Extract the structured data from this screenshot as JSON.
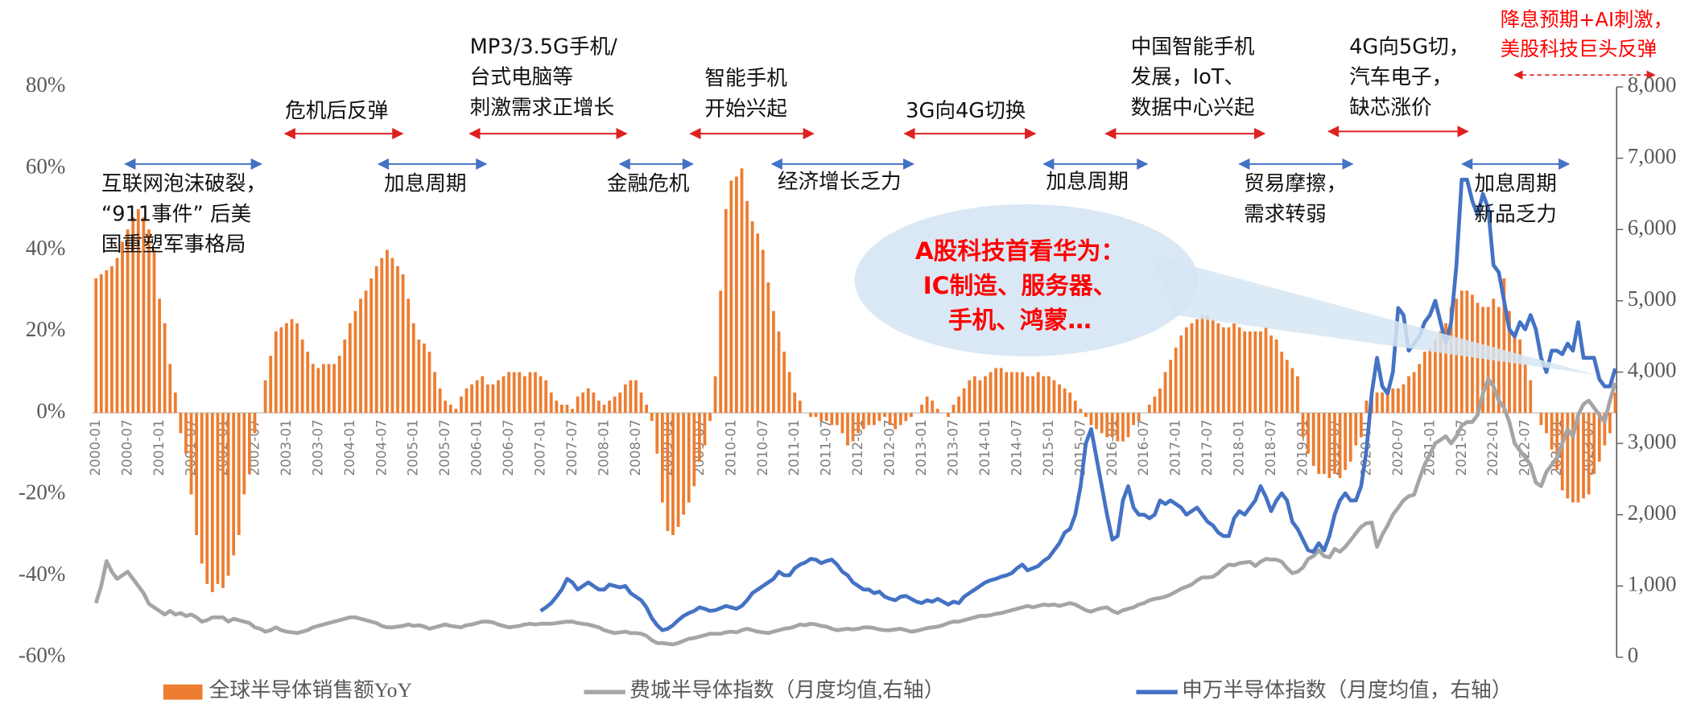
{
  "chart_data": {
    "type": "bar",
    "categories": [
      "2000-01",
      null,
      null,
      null,
      null,
      null,
      "2000-07",
      null,
      null,
      null,
      null,
      null,
      "2001-01",
      null,
      null,
      null,
      null,
      null,
      "2001-07",
      null,
      null,
      null,
      null,
      null,
      "2002-01",
      null,
      null,
      null,
      null,
      null,
      "2002-07",
      null,
      null,
      null,
      null,
      null,
      "2003-01",
      null,
      null,
      null,
      null,
      null,
      "2003-07",
      null,
      null,
      null,
      null,
      null,
      "2004-01",
      null,
      null,
      null,
      null,
      null,
      "2004-07",
      null,
      null,
      null,
      null,
      null,
      "2005-01",
      null,
      null,
      null,
      null,
      null,
      "2005-07",
      null,
      null,
      null,
      null,
      null,
      "2006-01",
      null,
      null,
      null,
      null,
      null,
      "2006-07",
      null,
      null,
      null,
      null,
      null,
      "2007-01",
      null,
      null,
      null,
      null,
      null,
      "2007-07",
      null,
      null,
      null,
      null,
      null,
      "2008-01",
      null,
      null,
      null,
      null,
      null,
      "2008-07",
      null,
      null,
      null,
      null,
      null,
      "2009-01",
      null,
      null,
      null,
      null,
      null,
      "2009-07",
      null,
      null,
      null,
      null,
      null,
      "2010-01",
      null,
      null,
      null,
      null,
      null,
      "2010-07",
      null,
      null,
      null,
      null,
      null,
      "2011-01",
      null,
      null,
      null,
      null,
      null,
      "2011-07",
      null,
      null,
      null,
      null,
      null,
      "2012-01",
      null,
      null,
      null,
      null,
      null,
      "2012-07",
      null,
      null,
      null,
      null,
      null,
      "2013-01",
      null,
      null,
      null,
      null,
      null,
      "2013-07",
      null,
      null,
      null,
      null,
      null,
      "2014-01",
      null,
      null,
      null,
      null,
      null,
      "2014-07",
      null,
      null,
      null,
      null,
      null,
      "2015-01",
      null,
      null,
      null,
      null,
      null,
      "2015-07",
      null,
      null,
      null,
      null,
      null,
      "2016-01",
      null,
      null,
      null,
      null,
      null,
      "2016-07",
      null,
      null,
      null,
      null,
      null,
      "2017-01",
      null,
      null,
      null,
      null,
      null,
      "2017-07",
      null,
      null,
      null,
      null,
      null,
      "2018-01",
      null,
      null,
      null,
      null,
      null,
      "2018-07",
      null,
      null,
      null,
      null,
      null,
      "2019-01",
      null,
      null,
      null,
      null,
      null,
      "2019-07",
      null,
      null,
      null,
      null,
      null,
      "2020-01",
      null,
      null,
      null,
      null,
      null,
      "2020-07",
      null,
      null,
      null,
      null,
      null,
      "2021-01",
      null,
      null,
      null,
      null,
      null,
      "2021-07",
      null,
      null,
      null,
      null,
      null,
      "2022-01",
      null,
      null,
      null,
      null,
      null,
      "2022-07",
      null,
      null,
      null,
      null,
      null,
      "2023-01",
      null,
      null,
      null,
      null,
      null,
      "2023-07",
      null,
      null,
      null,
      null,
      null
    ],
    "series": [
      {
        "name": "全球半导体销售额YoY",
        "type": "bar",
        "color": "#ed7d31",
        "axis": "y",
        "values": [
          33,
          34,
          35,
          36,
          38,
          42,
          45,
          48,
          50,
          48,
          45,
          40,
          28,
          22,
          12,
          5,
          -5,
          -10,
          -20,
          -30,
          -37,
          -42,
          -44,
          -42,
          -43,
          -40,
          -35,
          -30,
          -20,
          -15,
          -5,
          0,
          8,
          14,
          20,
          21,
          22,
          23,
          22,
          18,
          15,
          12,
          11,
          12,
          12,
          12,
          14,
          18,
          22,
          25,
          28,
          30,
          33,
          36,
          38,
          40,
          38,
          36,
          34,
          28,
          22,
          18,
          17,
          15,
          10,
          6,
          3,
          2,
          1,
          4,
          6,
          7,
          8,
          9,
          7,
          7,
          8,
          9,
          10,
          10,
          10,
          9,
          10,
          10,
          9,
          8,
          5,
          3,
          2,
          2,
          1,
          4,
          5,
          6,
          5,
          3,
          2,
          3,
          4,
          5,
          7,
          8,
          8,
          5,
          2,
          -2,
          -10,
          -22,
          -29,
          -30,
          -28,
          -25,
          -22,
          -18,
          -12,
          -8,
          -2,
          9,
          30,
          50,
          57,
          58,
          60,
          52,
          47,
          44,
          40,
          32,
          25,
          20,
          15,
          10,
          5,
          3,
          0,
          -1,
          -1,
          -2,
          -2,
          -3,
          -3,
          -5,
          -8,
          -7,
          -5,
          -4,
          -3,
          -3,
          -2,
          -1,
          -3,
          -4,
          -3,
          -2,
          -1,
          0,
          2,
          4,
          3,
          1,
          0,
          -1,
          2,
          4,
          6,
          8,
          9,
          8,
          9,
          10,
          11,
          11,
          10,
          10,
          10,
          10,
          9,
          9,
          10,
          9,
          9,
          8,
          7,
          6,
          5,
          3,
          1,
          -1,
          -3,
          -4,
          -5,
          -6,
          -6,
          -7,
          -7,
          -6,
          -3,
          -2,
          0,
          2,
          4,
          6,
          10,
          13,
          16,
          19,
          21,
          22,
          23,
          24,
          24,
          23,
          22,
          21,
          21,
          22,
          21,
          20,
          20,
          20,
          20,
          21,
          19,
          18,
          15,
          13,
          11,
          9,
          -6,
          -10,
          -13,
          -15,
          -15,
          -16,
          -15,
          -16,
          -14,
          -12,
          -8,
          -6,
          3,
          4,
          5,
          5,
          6,
          6,
          6,
          7,
          9,
          10,
          12,
          15,
          16,
          18,
          20,
          22,
          26,
          28,
          30,
          30,
          29,
          27,
          26,
          26,
          28,
          26,
          33,
          25,
          19,
          18,
          12,
          8,
          0,
          -3,
          -5,
          -9,
          -14,
          -19,
          -21,
          -22,
          -22,
          -21,
          -20,
          -15,
          -12,
          -8,
          -5,
          5
        ]
      },
      {
        "name": "费城半导体指数（月度均值,右轴）",
        "type": "line",
        "color": "#a5a5a5",
        "axis": "y2",
        "values": [
          760,
          1000,
          1350,
          1200,
          1100,
          1150,
          1200,
          1100,
          1000,
          900,
          750,
          700,
          650,
          600,
          650,
          600,
          620,
          580,
          600,
          560,
          500,
          520,
          560,
          560,
          560,
          500,
          540,
          520,
          500,
          480,
          420,
          400,
          360,
          380,
          420,
          380,
          360,
          350,
          340,
          360,
          380,
          420,
          440,
          460,
          480,
          500,
          520,
          540,
          560,
          560,
          540,
          520,
          500,
          480,
          440,
          420,
          420,
          430,
          440,
          460,
          440,
          450,
          430,
          400,
          420,
          440,
          460,
          440,
          430,
          420,
          450,
          460,
          480,
          500,
          500,
          490,
          460,
          440,
          420,
          430,
          440,
          460,
          470,
          460,
          470,
          470,
          470,
          480,
          490,
          500,
          500,
          480,
          470,
          460,
          440,
          420,
          380,
          360,
          340,
          350,
          360,
          340,
          340,
          330,
          300,
          240,
          200,
          200,
          190,
          180,
          200,
          230,
          260,
          270,
          290,
          310,
          330,
          330,
          330,
          350,
          360,
          350,
          380,
          400,
          380,
          360,
          350,
          340,
          360,
          380,
          400,
          410,
          430,
          460,
          450,
          470,
          460,
          440,
          430,
          400,
          380,
          390,
          400,
          390,
          400,
          420,
          420,
          410,
          390,
          380,
          380,
          390,
          400,
          380,
          360,
          370,
          390,
          410,
          420,
          430,
          450,
          480,
          500,
          500,
          520,
          540,
          560,
          580,
          580,
          590,
          610,
          620,
          640,
          660,
          680,
          700,
          720,
          700,
          720,
          740,
          730,
          740,
          720,
          740,
          760,
          740,
          700,
          660,
          640,
          670,
          690,
          700,
          650,
          620,
          660,
          680,
          700,
          740,
          760,
          800,
          820,
          830,
          850,
          880,
          920,
          960,
          990,
          1020,
          1080,
          1120,
          1120,
          1130,
          1180,
          1250,
          1300,
          1290,
          1320,
          1330,
          1340,
          1280,
          1340,
          1380,
          1370,
          1370,
          1340,
          1250,
          1180,
          1200,
          1260,
          1380,
          1420,
          1500,
          1420,
          1400,
          1520,
          1480,
          1550,
          1640,
          1740,
          1830,
          1880,
          1890,
          1550,
          1720,
          1850,
          2000,
          2100,
          2200,
          2260,
          2280,
          2500,
          2700,
          2850,
          3000,
          3050,
          3100,
          3000,
          3100,
          3250,
          3300,
          3300,
          3400,
          3700,
          3900,
          3800,
          3600,
          3500,
          3300,
          3000,
          2900,
          2800,
          2700,
          2450,
          2400,
          2600,
          2700,
          2800,
          3000,
          3200,
          3100,
          3400,
          3550,
          3600,
          3500,
          3400,
          3300,
          3600,
          3850
        ]
      },
      {
        "name": "申万半导体指数（月度均值，右轴）",
        "type": "line",
        "color": "#4472c4",
        "axis": "y2",
        "values": [
          null,
          null,
          null,
          null,
          null,
          null,
          null,
          null,
          null,
          null,
          null,
          null,
          null,
          null,
          null,
          null,
          null,
          null,
          null,
          null,
          null,
          null,
          null,
          null,
          null,
          null,
          null,
          null,
          null,
          null,
          null,
          null,
          null,
          null,
          null,
          null,
          null,
          null,
          null,
          null,
          null,
          null,
          null,
          null,
          null,
          null,
          null,
          null,
          null,
          null,
          null,
          null,
          null,
          null,
          null,
          null,
          null,
          null,
          null,
          null,
          null,
          null,
          null,
          null,
          null,
          null,
          null,
          null,
          null,
          null,
          null,
          null,
          null,
          null,
          null,
          null,
          null,
          null,
          null,
          null,
          null,
          null,
          null,
          null,
          650,
          700,
          760,
          850,
          950,
          1100,
          1050,
          950,
          1000,
          1050,
          1000,
          950,
          950,
          1020,
          1000,
          980,
          1000,
          900,
          850,
          800,
          700,
          550,
          450,
          380,
          400,
          450,
          520,
          580,
          620,
          650,
          700,
          680,
          650,
          660,
          690,
          720,
          700,
          680,
          720,
          800,
          900,
          950,
          1000,
          1050,
          1100,
          1200,
          1150,
          1150,
          1250,
          1300,
          1330,
          1380,
          1370,
          1320,
          1350,
          1370,
          1300,
          1200,
          1150,
          1050,
          1000,
          950,
          950,
          900,
          920,
          850,
          820,
          800,
          850,
          860,
          820,
          780,
          760,
          800,
          780,
          820,
          780,
          740,
          780,
          760,
          850,
          900,
          950,
          1000,
          1050,
          1080,
          1100,
          1130,
          1150,
          1180,
          1250,
          1300,
          1220,
          1250,
          1280,
          1350,
          1400,
          1500,
          1600,
          1750,
          1800,
          2000,
          2400,
          3000,
          3200,
          2800,
          2400,
          2000,
          1650,
          1700,
          2200,
          2400,
          2100,
          2000,
          2000,
          1950,
          2000,
          2200,
          2150,
          2200,
          2150,
          2100,
          2000,
          2050,
          2100,
          2000,
          1900,
          1850,
          1750,
          1700,
          1700,
          1950,
          2050,
          2000,
          2100,
          2200,
          2400,
          2250,
          2050,
          2200,
          2300,
          2200,
          1900,
          1800,
          1650,
          1500,
          1480,
          1600,
          1500,
          1700,
          2000,
          2200,
          2300,
          2200,
          2200,
          2400,
          2900,
          3700,
          4200,
          3800,
          3700,
          4000,
          4900,
          4800,
          4300,
          4400,
          4500,
          4700,
          4800,
          5000,
          4700,
          4400,
          4700,
          5500,
          6700,
          6700,
          6400,
          6200,
          6500,
          6300,
          5500,
          5400,
          5000,
          4600,
          4500,
          4700,
          4600,
          4800,
          4600,
          4200,
          4000,
          4300,
          4300,
          4250,
          4400,
          4300,
          4700,
          4200,
          4200,
          4200,
          3900,
          3800,
          3800,
          4050
        ]
      }
    ],
    "ylim": [
      -60,
      80
    ],
    "yticks": [
      {
        "value": -60,
        "label": "-60%"
      },
      {
        "value": -40,
        "label": "-40%"
      },
      {
        "value": -20,
        "label": "-20%"
      },
      {
        "value": 0,
        "label": "0%"
      },
      {
        "value": 20,
        "label": "20%"
      },
      {
        "value": 40,
        "label": "40%"
      },
      {
        "value": 60,
        "label": "60%"
      },
      {
        "value": 80,
        "label": "80%"
      }
    ],
    "y2lim": [
      0,
      8000
    ],
    "y2ticks": [
      0,
      {
        "value": 1000,
        "label": "1,000"
      },
      {
        "value": 2000,
        "label": "2,000"
      },
      {
        "value": 3000,
        "label": "3,000"
      },
      {
        "value": 4000,
        "label": "4,000"
      },
      {
        "value": 5000,
        "label": "5,000"
      },
      {
        "value": 6000,
        "label": "6,000"
      },
      {
        "value": 7000,
        "label": "7,000"
      },
      {
        "value": 8000,
        "label": "8,000"
      }
    ],
    "legend": "bottom",
    "annotations": [
      {
        "lines": [
          "互联网泡沫破裂，",
          "“911事件” 后美",
          "国重塑军事格局"
        ]
      },
      {
        "lines": [
          "危机后反弹"
        ]
      },
      {
        "lines": [
          "加息周期"
        ]
      },
      {
        "lines": [
          "MP3/3.5G手机/",
          "台式电脑等",
          "刺激需求正增长"
        ]
      },
      {
        "lines": [
          "金融危机"
        ]
      },
      {
        "lines": [
          "智能手机",
          "开始兴起"
        ]
      },
      {
        "lines": [
          "经济增长乏力"
        ]
      },
      {
        "lines": [
          "3G向4G切换"
        ]
      },
      {
        "lines": [
          "加息周期"
        ]
      },
      {
        "lines": [
          "中国智能手机",
          "发展，IoT、",
          "数据中心兴起"
        ]
      },
      {
        "lines": [
          "贸易摩擦，",
          "需求转弱"
        ]
      },
      {
        "lines": [
          "4G向5G切，",
          "汽车电子，",
          "缺芯涨价"
        ]
      },
      {
        "lines": [
          "加息周期",
          "新品乏力"
        ]
      }
    ],
    "callout": {
      "lines": [
        "A股科技首看华为：",
        "IC制造、服务器、",
        "手机、鸿蒙…"
      ]
    },
    "top_note": {
      "lines": [
        "降息预期+AI刺激，",
        "美股科技巨头反弹"
      ]
    }
  }
}
